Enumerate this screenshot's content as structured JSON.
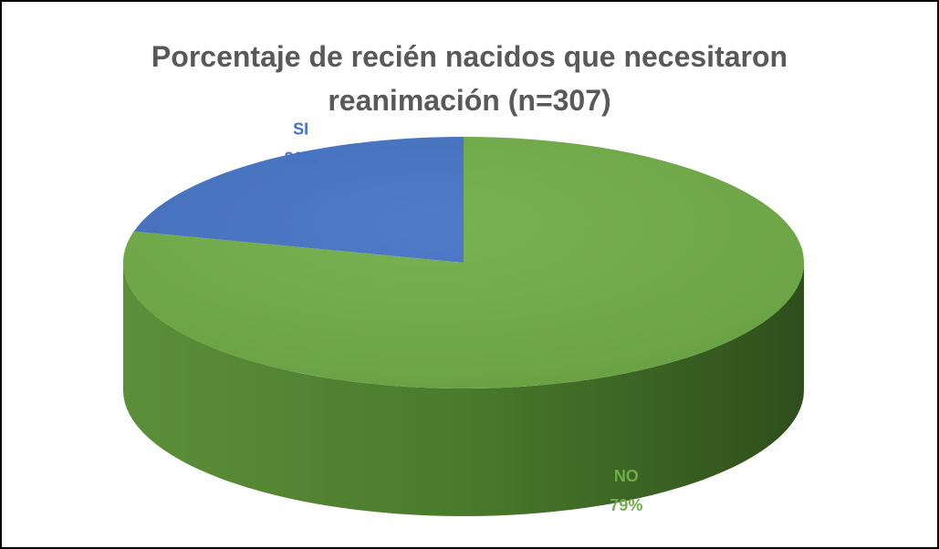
{
  "chart_data": {
    "type": "pie",
    "title": "Porcentaje de recién nacidos que necesitaron reanimación (n=307)",
    "categories": [
      "NO",
      "SI"
    ],
    "values": [
      79,
      21
    ],
    "value_labels": [
      "79%",
      "21%"
    ],
    "colors": [
      "#70ad47",
      "#4472c4"
    ]
  }
}
